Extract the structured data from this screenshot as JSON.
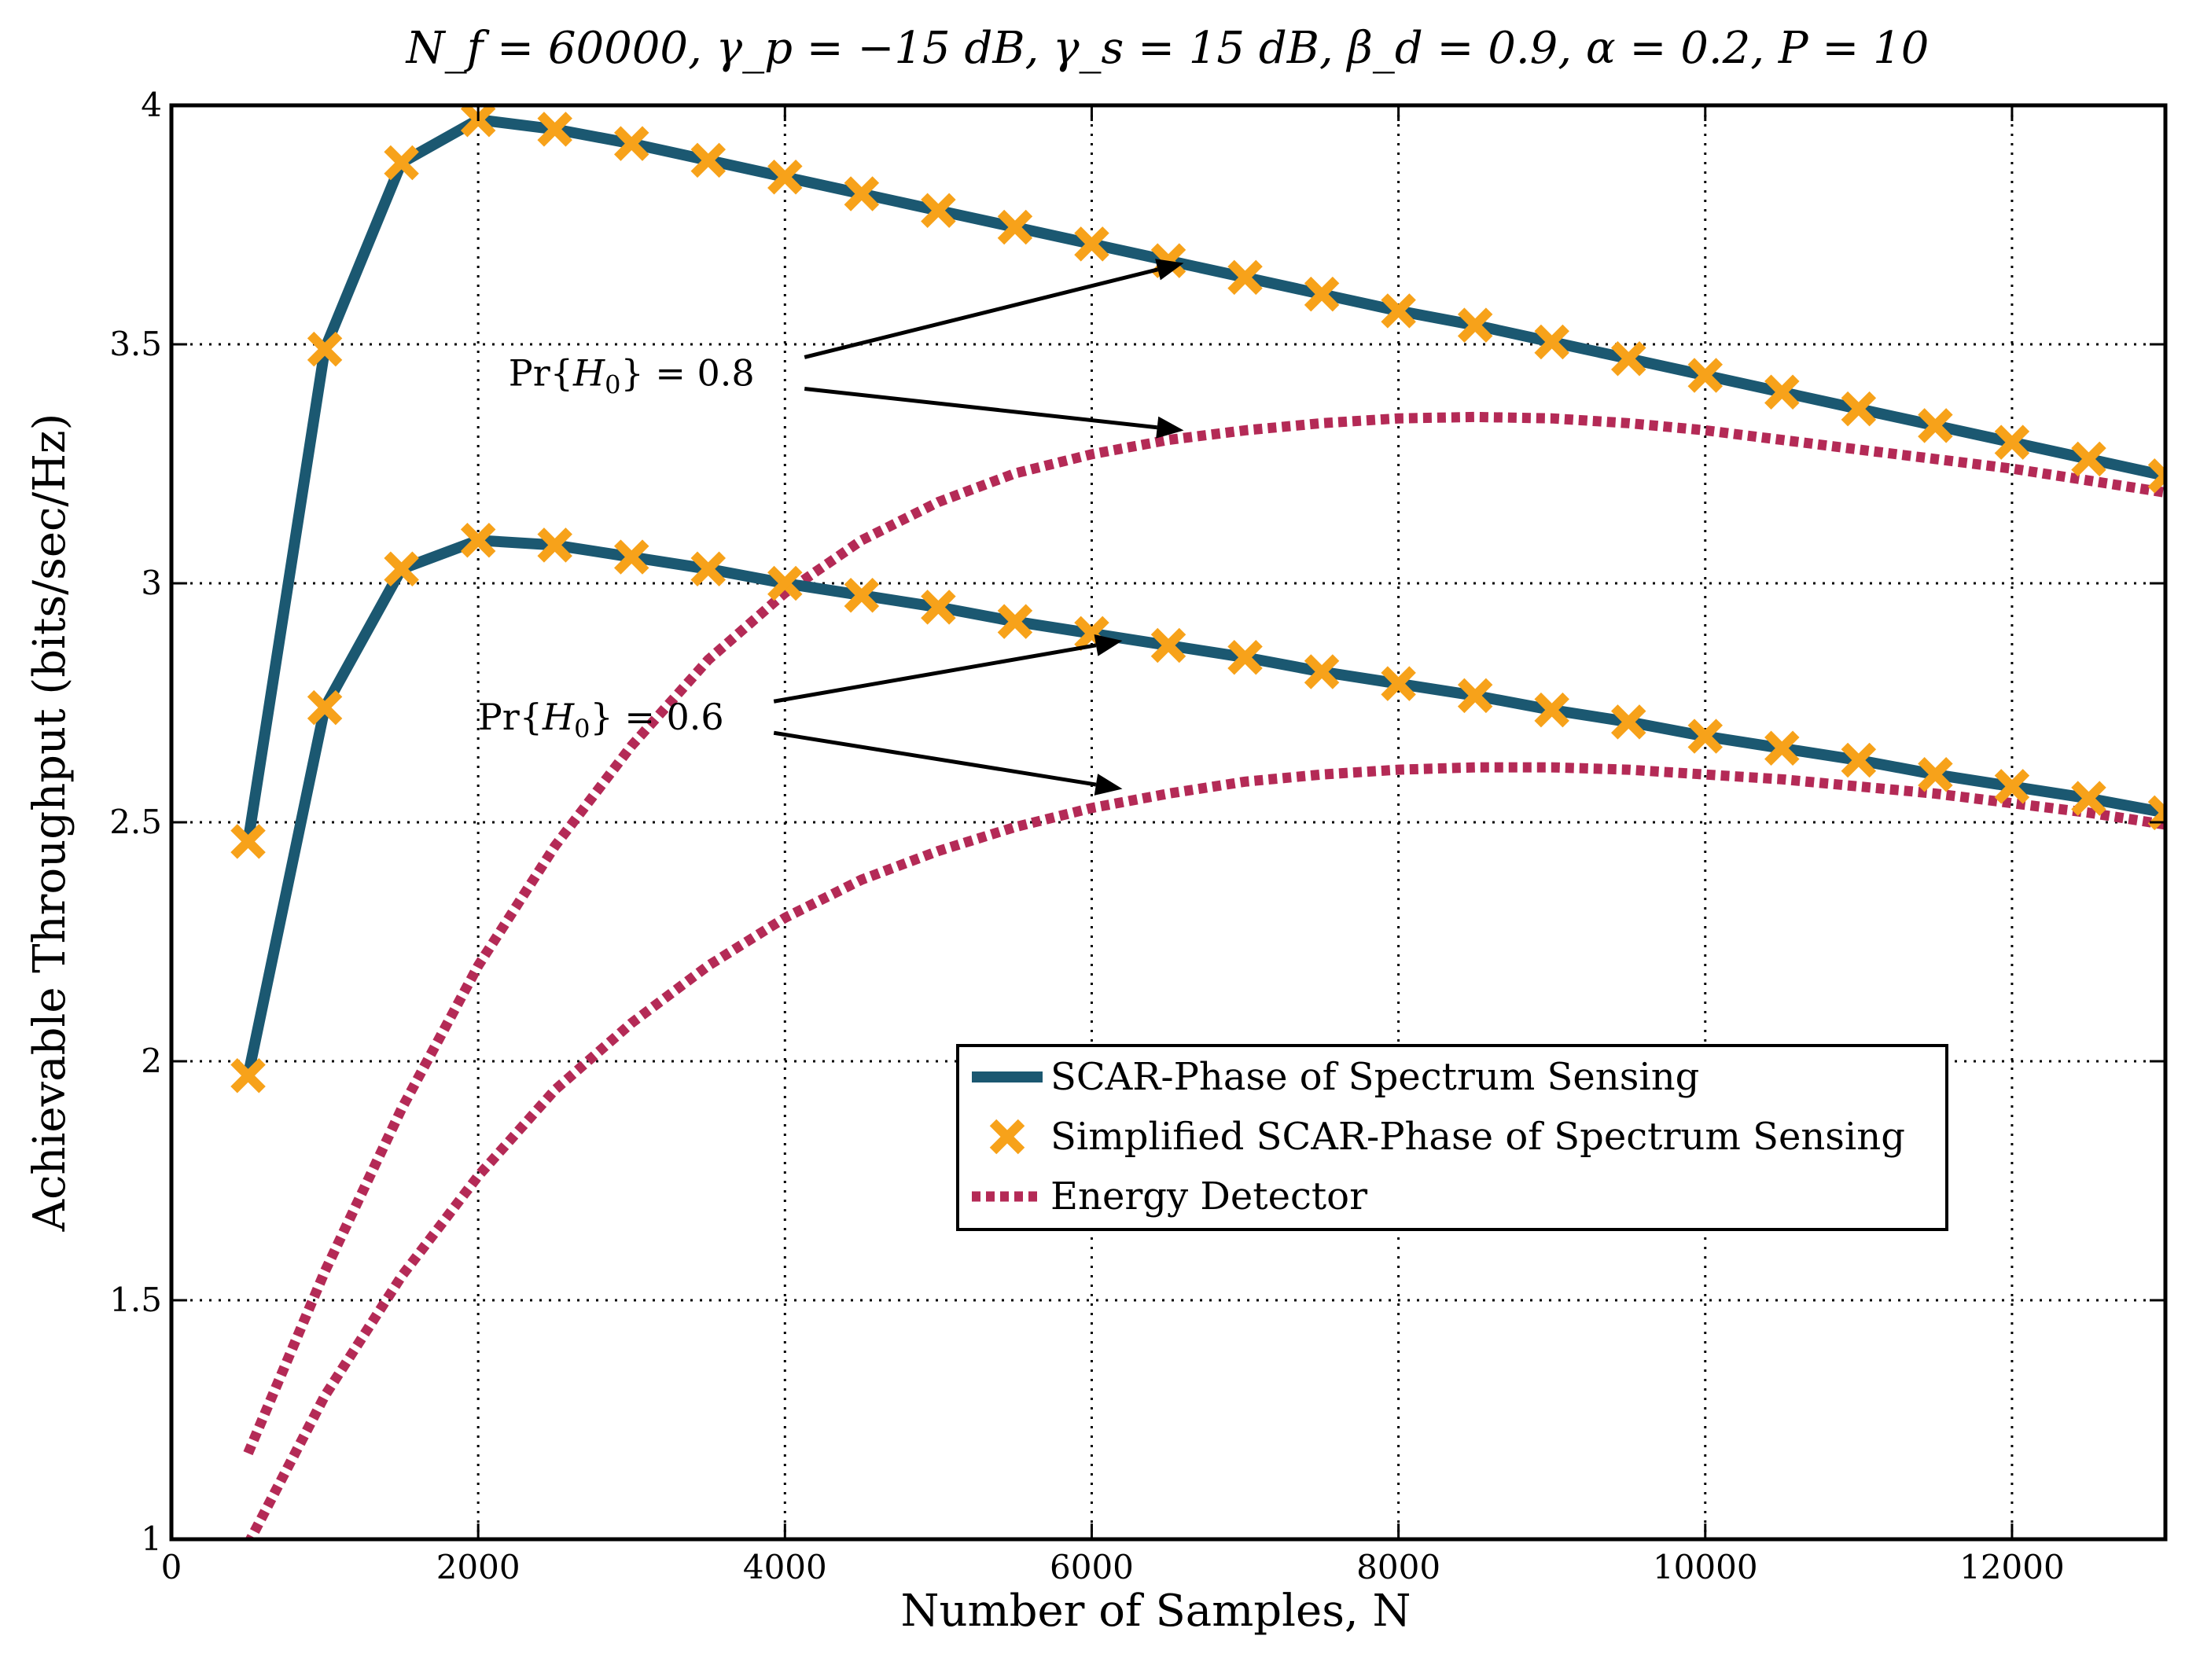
{
  "chart_data": {
    "type": "line",
    "title": "N_f = 60000, γ_p = −15 dB, γ_s = 15 dB, β_d = 0.9, α = 0.2, P = 10",
    "xlabel": "Number of Samples, N",
    "ylabel": "Achievable Throughput (bits/sec/Hz)",
    "xlim": [
      0,
      13000
    ],
    "ylim": [
      1,
      4
    ],
    "xticks": [
      0,
      2000,
      4000,
      6000,
      8000,
      10000,
      12000
    ],
    "xtick_labels": [
      "0",
      "2000",
      "4000",
      "6000",
      "8000",
      "10000",
      "12000"
    ],
    "yticks": [
      1,
      1.5,
      2,
      2.5,
      3,
      3.5,
      4
    ],
    "ytick_labels": [
      "1",
      "1.5",
      "2",
      "2.5",
      "3",
      "3.5",
      "4"
    ],
    "grid": true,
    "legend_position": "center-right",
    "colors": {
      "scar": "#1b5871",
      "simplified": "#f7a21a",
      "energy": "#b42a56"
    },
    "legend": [
      {
        "label": "SCAR-Phase of Spectrum Sensing",
        "style": "line",
        "color": "#1b5871"
      },
      {
        "label": "Simplified SCAR-Phase of Spectrum Sensing",
        "style": "marker-x",
        "color": "#f7a21a"
      },
      {
        "label": "Energy Detector",
        "style": "dotted",
        "color": "#b42a56"
      }
    ],
    "annotations": [
      {
        "text": "Pr{H0} = 0.8",
        "prefix": "Pr{",
        "script": "H",
        "sub": "0",
        "suffix": "} = 0.8",
        "anchor": [
          3000,
          3.44
        ],
        "targets": [
          [
            6600,
            3.67
          ],
          [
            6600,
            3.32
          ]
        ]
      },
      {
        "text": "Pr{H0} = 0.6",
        "prefix": "Pr{",
        "script": "H",
        "sub": "0",
        "suffix": "} = 0.6",
        "anchor": [
          2800,
          2.72
        ],
        "targets": [
          [
            6200,
            2.88
          ],
          [
            6200,
            2.57
          ]
        ]
      }
    ],
    "series": [
      {
        "name": "SCAR-Phase of Spectrum Sensing (Pr{H0} = 0.8)",
        "kind": "scar",
        "x": [
          500,
          1000,
          1500,
          2000,
          2500,
          3000,
          3500,
          4000,
          4500,
          5000,
          5500,
          6000,
          6500,
          7000,
          7500,
          8000,
          8500,
          9000,
          9500,
          10000,
          10500,
          11000,
          11500,
          12000,
          12500,
          13000
        ],
        "y": [
          2.46,
          3.49,
          3.88,
          3.97,
          3.95,
          3.92,
          3.885,
          3.85,
          3.815,
          3.78,
          3.745,
          3.71,
          3.675,
          3.64,
          3.605,
          3.57,
          3.54,
          3.505,
          3.47,
          3.435,
          3.4,
          3.365,
          3.33,
          3.295,
          3.26,
          3.225
        ]
      },
      {
        "name": "Simplified SCAR-Phase of Spectrum Sensing (Pr{H0} = 0.8)",
        "kind": "simplified",
        "x": [
          500,
          1000,
          1500,
          2000,
          2500,
          3000,
          3500,
          4000,
          4500,
          5000,
          5500,
          6000,
          6500,
          7000,
          7500,
          8000,
          8500,
          9000,
          9500,
          10000,
          10500,
          11000,
          11500,
          12000,
          12500,
          13000
        ],
        "y": [
          2.46,
          3.49,
          3.88,
          3.97,
          3.95,
          3.92,
          3.885,
          3.85,
          3.815,
          3.78,
          3.745,
          3.71,
          3.675,
          3.64,
          3.605,
          3.57,
          3.54,
          3.505,
          3.47,
          3.435,
          3.4,
          3.365,
          3.33,
          3.295,
          3.26,
          3.225
        ]
      },
      {
        "name": "Energy Detector (Pr{H0} = 0.8)",
        "kind": "energy",
        "x": [
          500,
          1000,
          1500,
          2000,
          2500,
          3000,
          3500,
          4000,
          4500,
          5000,
          5500,
          6000,
          6500,
          7000,
          7500,
          8000,
          8500,
          9000,
          9500,
          10000,
          10500,
          11000,
          11500,
          12000,
          12500,
          13000
        ],
        "y": [
          1.18,
          1.56,
          1.9,
          2.2,
          2.45,
          2.66,
          2.84,
          2.98,
          3.09,
          3.17,
          3.23,
          3.27,
          3.3,
          3.32,
          3.335,
          3.345,
          3.348,
          3.345,
          3.335,
          3.32,
          3.3,
          3.28,
          3.26,
          3.24,
          3.215,
          3.19
        ]
      },
      {
        "name": "SCAR-Phase of Spectrum Sensing (Pr{H0} = 0.6)",
        "kind": "scar",
        "x": [
          500,
          1000,
          1500,
          2000,
          2500,
          3000,
          3500,
          4000,
          4500,
          5000,
          5500,
          6000,
          6500,
          7000,
          7500,
          8000,
          8500,
          9000,
          9500,
          10000,
          10500,
          11000,
          11500,
          12000,
          12500,
          13000
        ],
        "y": [
          1.97,
          2.74,
          3.03,
          3.09,
          3.08,
          3.055,
          3.03,
          3.0,
          2.975,
          2.95,
          2.92,
          2.895,
          2.87,
          2.845,
          2.815,
          2.79,
          2.765,
          2.735,
          2.71,
          2.68,
          2.655,
          2.63,
          2.6,
          2.575,
          2.55,
          2.52
        ]
      },
      {
        "name": "Simplified SCAR-Phase of Spectrum Sensing (Pr{H0} = 0.6)",
        "kind": "simplified",
        "x": [
          500,
          1000,
          1500,
          2000,
          2500,
          3000,
          3500,
          4000,
          4500,
          5000,
          5500,
          6000,
          6500,
          7000,
          7500,
          8000,
          8500,
          9000,
          9500,
          10000,
          10500,
          11000,
          11500,
          12000,
          12500,
          13000
        ],
        "y": [
          1.97,
          2.74,
          3.03,
          3.09,
          3.08,
          3.055,
          3.03,
          3.0,
          2.975,
          2.95,
          2.92,
          2.895,
          2.87,
          2.845,
          2.815,
          2.79,
          2.765,
          2.735,
          2.71,
          2.68,
          2.655,
          2.63,
          2.6,
          2.575,
          2.55,
          2.52
        ]
      },
      {
        "name": "Energy Detector (Pr{H0} = 0.6)",
        "kind": "energy",
        "x": [
          500,
          1000,
          1500,
          2000,
          2500,
          3000,
          3500,
          4000,
          4500,
          5000,
          5500,
          6000,
          6500,
          7000,
          7500,
          8000,
          8500,
          9000,
          9500,
          10000,
          10500,
          11000,
          11500,
          12000,
          12500,
          13000
        ],
        "y": [
          0.99,
          1.3,
          1.55,
          1.76,
          1.94,
          2.08,
          2.2,
          2.3,
          2.38,
          2.44,
          2.49,
          2.53,
          2.56,
          2.585,
          2.6,
          2.61,
          2.615,
          2.615,
          2.61,
          2.6,
          2.59,
          2.575,
          2.56,
          2.54,
          2.52,
          2.495
        ]
      }
    ]
  }
}
